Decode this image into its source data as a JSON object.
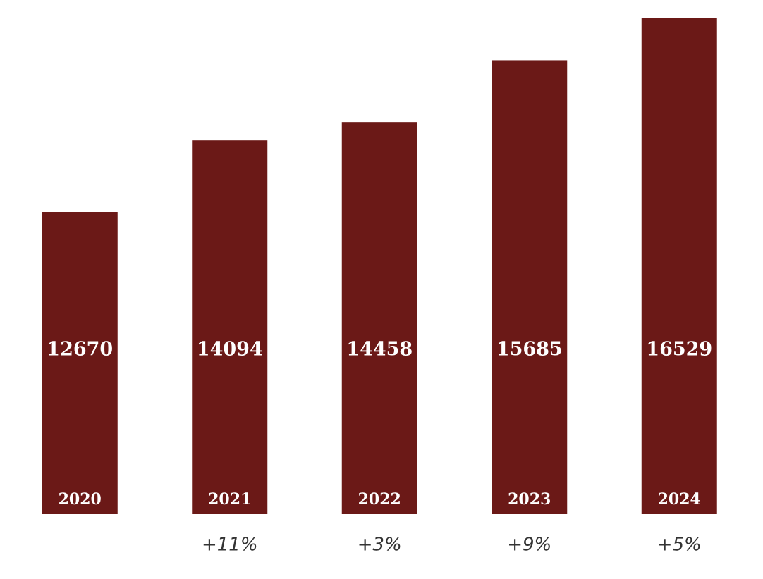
{
  "chart_data": {
    "type": "bar",
    "categories": [
      "2020",
      "2021",
      "2022",
      "2023",
      "2024"
    ],
    "values": [
      12670,
      14094,
      14458,
      15685,
      16529
    ],
    "change_labels": [
      null,
      "+11%",
      "+3%",
      "+9%",
      "+5%"
    ],
    "color": "#6b1917",
    "ylim": [
      6670,
      16880
    ]
  }
}
